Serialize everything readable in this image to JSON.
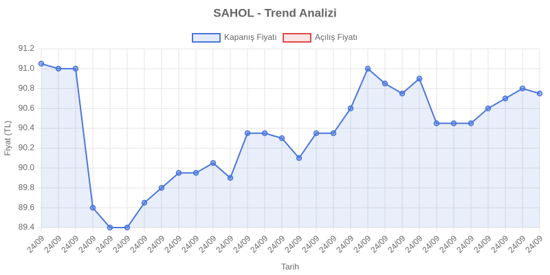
{
  "chart_data": {
    "type": "line",
    "title": "SAHOL - Trend Analizi",
    "x_label": "Tarih",
    "y_label": "Fiyat (TL)",
    "categories": [
      "24/09",
      "24/09",
      "24/09",
      "24/09",
      "24/09",
      "24/09",
      "24/09",
      "24/09",
      "24/09",
      "24/09",
      "24/09",
      "24/09",
      "24/09",
      "24/09",
      "24/09",
      "24/09",
      "24/09",
      "24/09",
      "24/09",
      "24/09",
      "24/09",
      "24/09",
      "24/09",
      "24/09",
      "24/09",
      "24/09",
      "24/09",
      "24/09",
      "24/09",
      "24/09"
    ],
    "series": [
      {
        "name": "Kapanış Fiyatı",
        "color": "#4a76dc",
        "fill": true,
        "values": [
          91.05,
          91.0,
          91.0,
          89.6,
          89.4,
          89.4,
          89.65,
          89.8,
          89.95,
          89.95,
          90.05,
          89.9,
          90.35,
          90.35,
          90.3,
          90.1,
          90.35,
          90.35,
          90.6,
          91.0,
          90.85,
          90.75,
          90.9,
          90.45,
          90.45,
          90.45,
          90.6,
          90.7,
          90.8,
          90.75
        ]
      },
      {
        "name": "Açılış Fiyatı",
        "color": "#e04848",
        "fill": false,
        "values": [
          null,
          null,
          null,
          null,
          null,
          null,
          null,
          null,
          null,
          null,
          null,
          null,
          null,
          null,
          null,
          null,
          null,
          null,
          null,
          null,
          null,
          null,
          null,
          null,
          null,
          null,
          null,
          null,
          null,
          null
        ]
      }
    ],
    "ylim": [
      89.4,
      91.2
    ],
    "yticks": [
      89.4,
      89.6,
      89.8,
      {
        "value": 90.0,
        "label": "90.0"
      },
      90.2,
      90.4,
      90.6,
      90.8,
      {
        "value": 91.0,
        "label": "91.0"
      },
      91.2
    ],
    "grid": true,
    "legend": "top"
  }
}
